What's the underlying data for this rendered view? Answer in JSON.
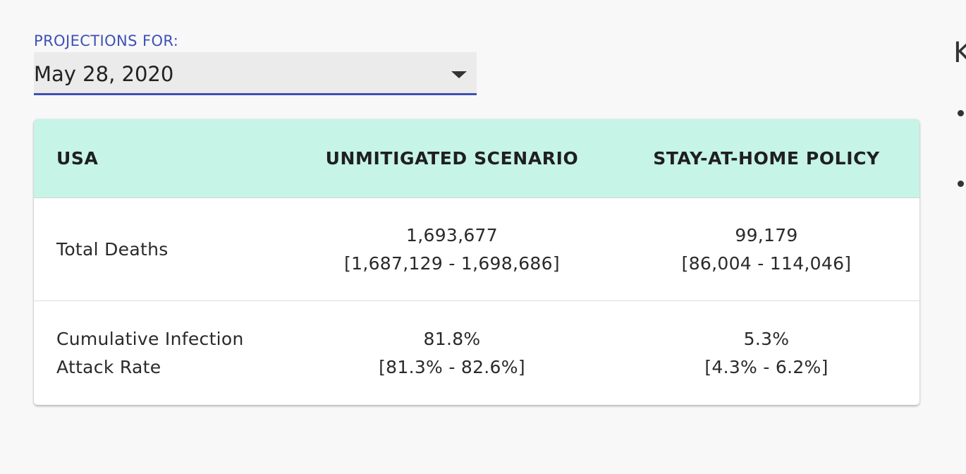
{
  "projections": {
    "label": "PROJECTIONS FOR:",
    "selected_date": "May 28, 2020"
  },
  "table": {
    "headers": [
      "USA",
      "UNMITIGATED SCENARIO",
      "STAY-AT-HOME POLICY"
    ],
    "rows": [
      {
        "label_lines": [
          "Total Deaths"
        ],
        "unmitigated": {
          "value": "1,693,677",
          "range": "[1,687,129 - 1,698,686]"
        },
        "stay_at_home": {
          "value": "99,179",
          "range": "[86,004 - 114,046]"
        }
      },
      {
        "label_lines": [
          "Cumulative Infection",
          "Attack Rate"
        ],
        "unmitigated": {
          "value": "81.8%",
          "range": "[81.3% - 82.6%]"
        },
        "stay_at_home": {
          "value": "5.3%",
          "range": "[4.3% - 6.2%]"
        }
      }
    ]
  },
  "side_panel": {
    "partial_heading": "K"
  },
  "colors": {
    "accent": "#3f51b5",
    "table_header_bg": "#c6f4e7",
    "page_bg": "#f8f8f8"
  }
}
